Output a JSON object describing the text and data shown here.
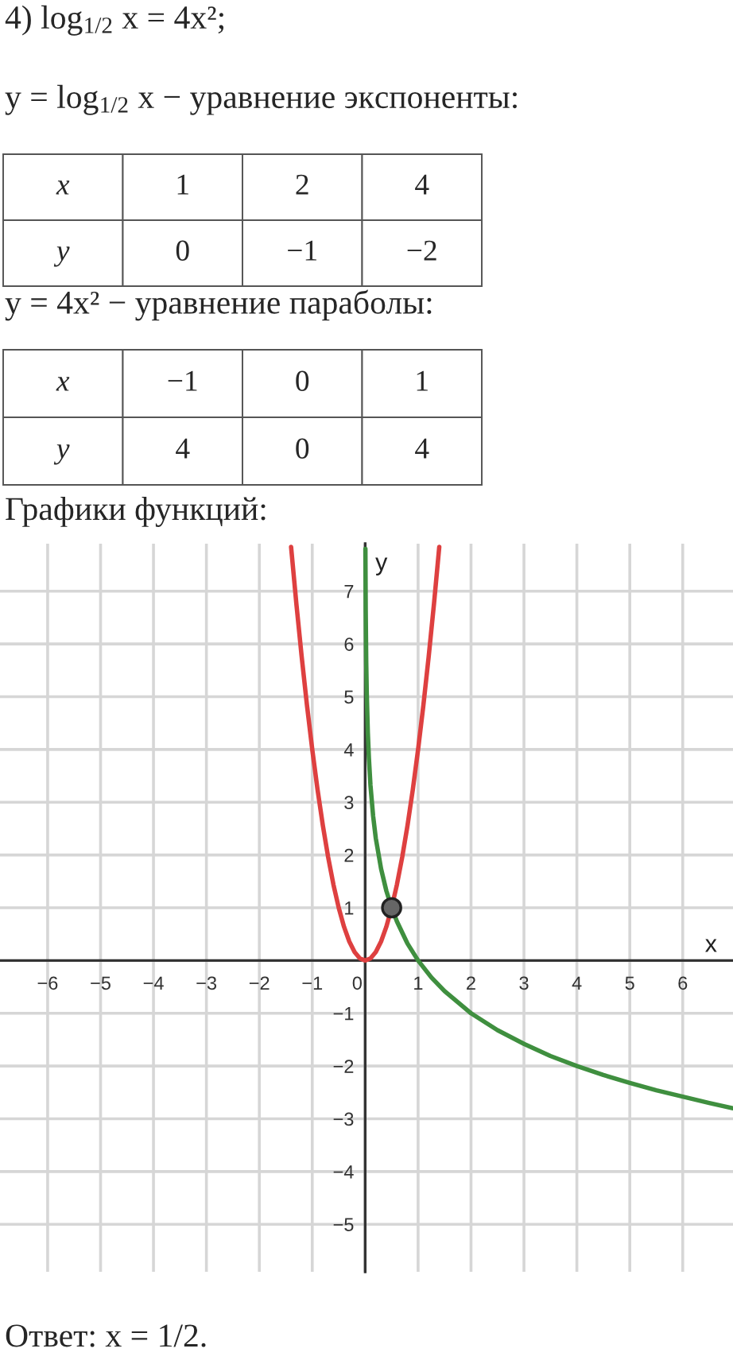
{
  "chart_data": [
    {
      "type": "other",
      "title": "4) log$_{1/2}$ x = 4x²;",
      "subtitle": "y = log$_{1/2}$ x − уравнение экспоненты:",
      "xlabel": "x",
      "ylabel": "y",
      "categories": [
        "1",
        "2",
        "4"
      ],
      "values": [
        0,
        -1,
        -2
      ],
      "data_labels": true
    },
    {
      "type": "other",
      "title": "y = 4x² − уравнение параболы:",
      "xlabel": "x",
      "ylabel": "y",
      "categories": [
        "−1",
        "0",
        "1"
      ],
      "values": [
        4,
        0,
        4
      ],
      "data_labels": true
    },
    {
      "type": "line",
      "title": "Графики функций:",
      "xlabel": "x",
      "ylabel": "y",
      "xlim": [
        -6.9,
        6.95
      ],
      "ylim": [
        -5.9,
        7.9
      ],
      "xticks": [
        -6,
        -5,
        -4,
        -3,
        -2,
        -1,
        0,
        1,
        2,
        3,
        4,
        5,
        6
      ],
      "yticks": [
        -5,
        -4,
        -3,
        -2,
        -1,
        1,
        2,
        3,
        4,
        5,
        6,
        7
      ],
      "grid": true,
      "series": [
        {
          "type": "line",
          "color": "#de4040",
          "x": [
            -1.4,
            -1.3,
            -1.2,
            -1.1,
            -1.0,
            -0.9,
            -0.8,
            -0.7,
            -0.6,
            -0.5,
            -0.4,
            -0.3,
            -0.2,
            -0.1,
            0,
            0.1,
            0.2,
            0.3,
            0.4,
            0.5,
            0.6,
            0.7,
            0.8,
            0.9,
            1.0,
            1.1,
            1.2,
            1.3,
            1.4
          ],
          "values": [
            7.84,
            6.76,
            5.76,
            4.84,
            4.0,
            3.24,
            2.56,
            1.96,
            1.44,
            1.0,
            0.64,
            0.36,
            0.16,
            0.04,
            0,
            0.04,
            0.16,
            0.36,
            0.64,
            1.0,
            1.44,
            1.96,
            2.56,
            3.24,
            4.0,
            4.84,
            5.76,
            6.76,
            7.84
          ]
        },
        {
          "type": "line",
          "color": "#3f8f3f",
          "x": [
            0.0045,
            0.005,
            0.01,
            0.02,
            0.03,
            0.05,
            0.07,
            0.1,
            0.15,
            0.2,
            0.3,
            0.4,
            0.5,
            0.6,
            0.8,
            1,
            1.25,
            1.5,
            2,
            2.5,
            3,
            3.5,
            4,
            4.5,
            5,
            5.5,
            6,
            6.5,
            6.95
          ],
          "values": [
            7.8,
            7.64,
            6.64,
            5.64,
            5.06,
            4.32,
            3.84,
            3.32,
            2.74,
            2.32,
            1.74,
            1.32,
            1.0,
            0.74,
            0.32,
            0,
            -0.32,
            -0.58,
            -1.0,
            -1.32,
            -1.58,
            -1.81,
            -2.0,
            -2.17,
            -2.32,
            -2.46,
            -2.58,
            -2.7,
            -2.8
          ]
        },
        {
          "type": "scatter",
          "color": "#666666",
          "marker": "circle",
          "x": [
            0.5
          ],
          "values": [
            1
          ]
        }
      ],
      "annotations": [
        "Ответ: x = 1/2."
      ]
    }
  ]
}
